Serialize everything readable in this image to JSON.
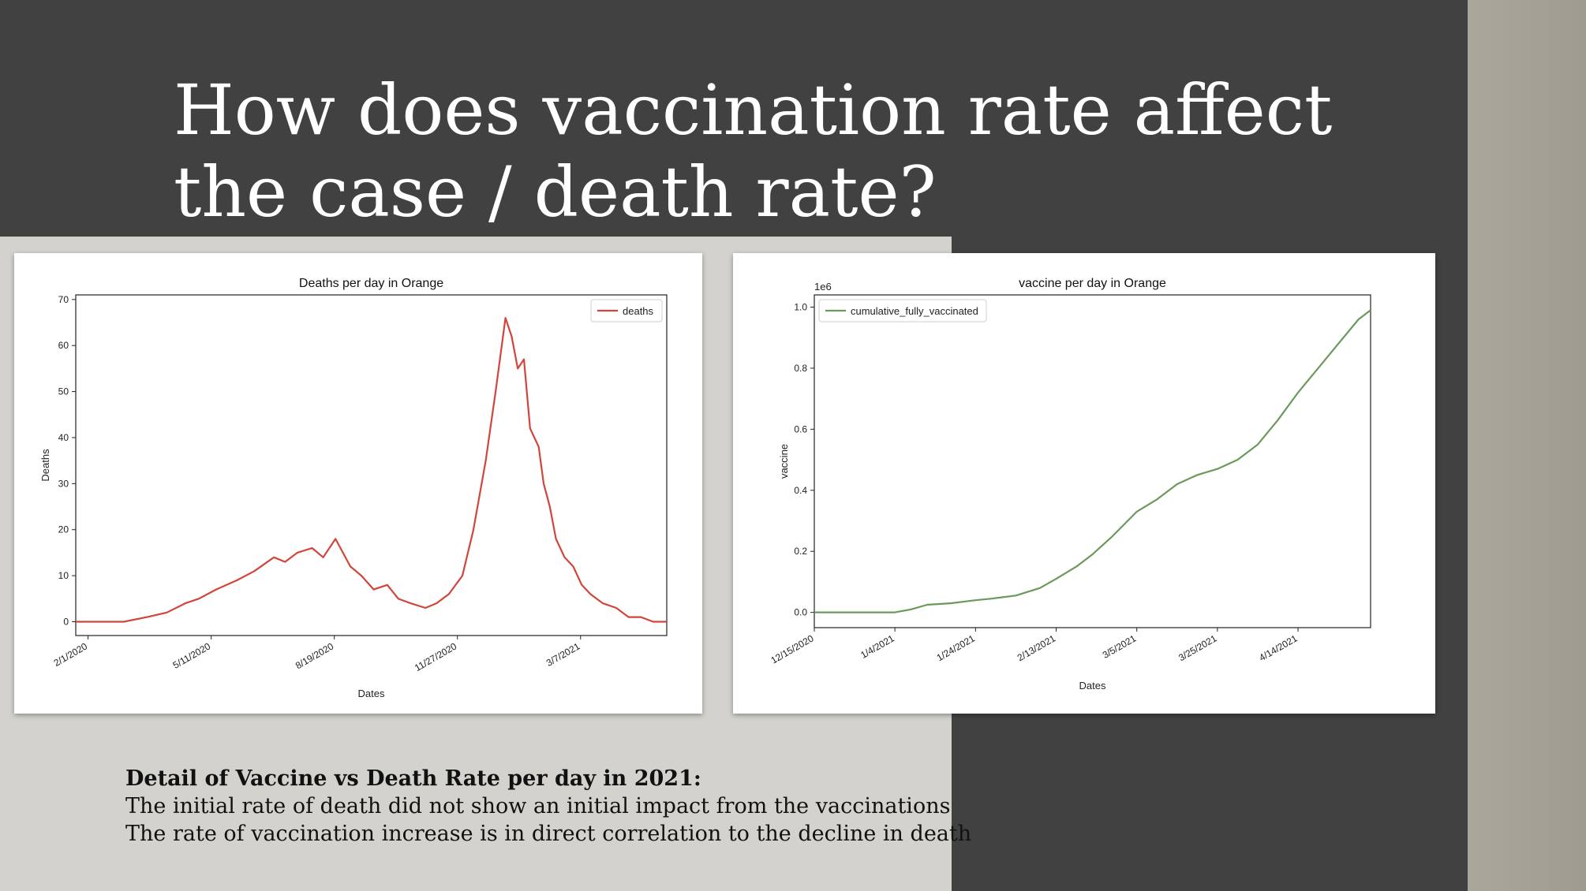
{
  "slide": {
    "title": "How does vaccination rate affect the case / death rate?",
    "detail_heading": "Detail of Vaccine vs Death Rate per day in 2021:",
    "detail_lines": [
      "The initial rate of death did not show an initial impact from the vaccinations",
      "The rate of vaccination increase is in direct correlation to the decline in death"
    ]
  },
  "colors": {
    "deaths_line": "#d1453a",
    "vaccine_line": "#6a9a5b",
    "dark_bg": "#414141"
  },
  "chart_data": [
    {
      "type": "line",
      "title": "Deaths per day in Orange",
      "xlabel": "Dates",
      "ylabel": "Deaths",
      "x_tick_labels": [
        "2/1/2020",
        "5/11/2020",
        "8/19/2020",
        "11/27/2020",
        "3/7/2021"
      ],
      "y_ticks": [
        0,
        10,
        20,
        30,
        40,
        50,
        60,
        70
      ],
      "ylim": [
        -3,
        71
      ],
      "x_range_days": [
        "2020-01-22",
        "2021-05-16"
      ],
      "legend": "top-right",
      "series": [
        {
          "name": "deaths",
          "x": [
            "2020-01-22",
            "2020-03-01",
            "2020-03-20",
            "2020-04-05",
            "2020-04-20",
            "2020-05-01",
            "2020-05-15",
            "2020-06-01",
            "2020-06-15",
            "2020-07-01",
            "2020-07-10",
            "2020-07-20",
            "2020-08-01",
            "2020-08-10",
            "2020-08-20",
            "2020-09-01",
            "2020-09-10",
            "2020-09-20",
            "2020-10-01",
            "2020-10-10",
            "2020-10-20",
            "2020-11-01",
            "2020-11-10",
            "2020-11-20",
            "2020-12-01",
            "2020-12-10",
            "2020-12-20",
            "2020-12-28",
            "2021-01-05",
            "2021-01-10",
            "2021-01-15",
            "2021-01-20",
            "2021-01-25",
            "2021-02-01",
            "2021-02-05",
            "2021-02-10",
            "2021-02-15",
            "2021-02-22",
            "2021-03-01",
            "2021-03-08",
            "2021-03-15",
            "2021-03-25",
            "2021-04-05",
            "2021-04-15",
            "2021-04-25",
            "2021-05-05",
            "2021-05-16"
          ],
          "values": [
            0,
            0,
            1,
            2,
            4,
            5,
            7,
            9,
            11,
            14,
            13,
            15,
            16,
            14,
            18,
            12,
            10,
            7,
            8,
            5,
            4,
            3,
            4,
            6,
            10,
            20,
            35,
            50,
            66,
            62,
            55,
            57,
            42,
            38,
            30,
            25,
            18,
            14,
            12,
            8,
            6,
            4,
            3,
            1,
            1,
            0,
            0
          ]
        }
      ]
    },
    {
      "type": "line",
      "title": "vaccine per day in Orange",
      "xlabel": "Dates",
      "ylabel": "vaccine",
      "y_offset_label": "1e6",
      "x_tick_labels": [
        "12/15/2020",
        "1/4/2021",
        "1/24/2021",
        "2/13/2021",
        "3/5/2021",
        "3/25/2021",
        "4/14/2021"
      ],
      "y_ticks": [
        0.0,
        0.2,
        0.4,
        0.6,
        0.8,
        1.0
      ],
      "ylim": [
        -0.05,
        1.04
      ],
      "x_range_days": [
        "2020-12-15",
        "2021-05-02"
      ],
      "legend": "top-left",
      "series": [
        {
          "name": "cumulative_fully_vaccinated",
          "x": [
            "2020-12-15",
            "2020-12-25",
            "2021-01-04",
            "2021-01-08",
            "2021-01-12",
            "2021-01-18",
            "2021-01-24",
            "2021-01-28",
            "2021-02-03",
            "2021-02-09",
            "2021-02-13",
            "2021-02-18",
            "2021-02-22",
            "2021-02-27",
            "2021-03-05",
            "2021-03-10",
            "2021-03-15",
            "2021-03-20",
            "2021-03-25",
            "2021-03-30",
            "2021-04-04",
            "2021-04-09",
            "2021-04-14",
            "2021-04-19",
            "2021-04-24",
            "2021-04-29",
            "2021-05-02"
          ],
          "values": [
            0.0,
            0.0,
            0.0,
            0.01,
            0.025,
            0.03,
            0.04,
            0.045,
            0.055,
            0.08,
            0.11,
            0.15,
            0.19,
            0.25,
            0.33,
            0.37,
            0.42,
            0.45,
            0.47,
            0.5,
            0.55,
            0.63,
            0.72,
            0.8,
            0.88,
            0.96,
            0.99
          ]
        }
      ]
    }
  ]
}
